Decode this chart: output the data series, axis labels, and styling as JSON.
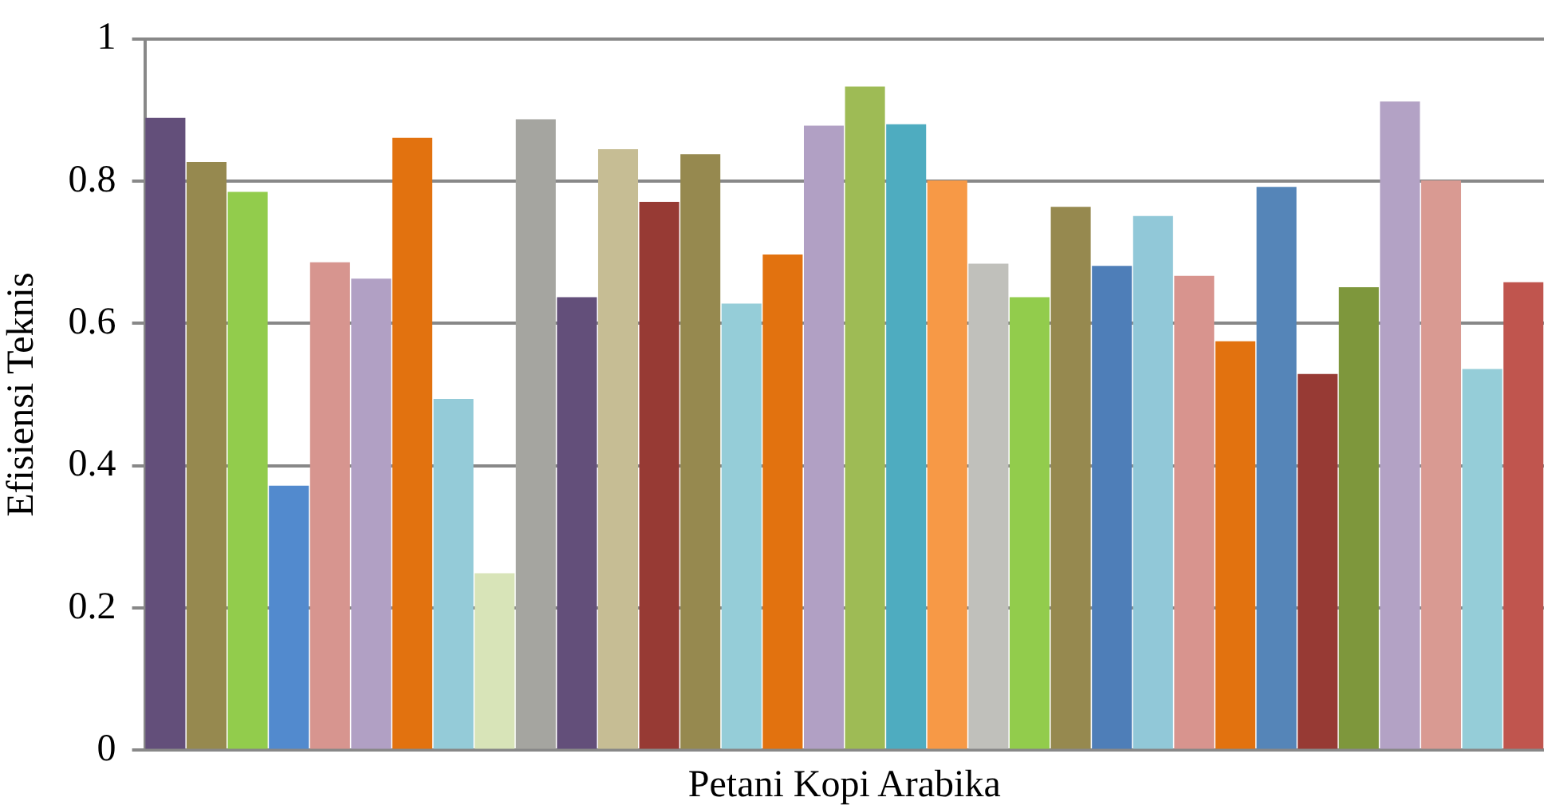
{
  "chart_data": {
    "type": "bar",
    "xlabel": "Petani Kopi Arabika",
    "ylabel": "Efisiensi Teknis",
    "categories": [
      null,
      null,
      null,
      null,
      null,
      null,
      null,
      null,
      null,
      null,
      null,
      null,
      null,
      null,
      null,
      null,
      null,
      null,
      null,
      null,
      null,
      null,
      null,
      null,
      null,
      null,
      null,
      null,
      null,
      null,
      null,
      null,
      null,
      null
    ],
    "values": [
      0.889,
      0.827,
      0.785,
      0.372,
      0.686,
      0.663,
      0.861,
      0.494,
      0.249,
      0.887,
      0.637,
      0.845,
      0.771,
      0.838,
      0.628,
      0.697,
      0.878,
      0.933,
      0.88,
      0.801,
      0.684,
      0.637,
      0.764,
      0.681,
      0.751,
      0.667,
      0.575,
      0.792,
      0.529,
      0.651,
      0.912,
      0.801,
      0.536,
      0.658
    ],
    "colors": [
      "#634f7a",
      "#96894f",
      "#92cc4c",
      "#528ace",
      "#d7958f",
      "#b1a0c4",
      "#e2720f",
      "#94cbd8",
      "#d8e4b8",
      "#a5a5a0",
      "#634f7a",
      "#c6bd94",
      "#973a34",
      "#96894f",
      "#95cdd8",
      "#e2720f",
      "#b1a0c4",
      "#9ebb55",
      "#4eacc0",
      "#f79946",
      "#c0c0bb",
      "#92cc4c",
      "#96894f",
      "#4e7eb8",
      "#91c8d8",
      "#d8948e",
      "#e2720f",
      "#5585b8",
      "#973a34",
      "#7e973c",
      "#b3a2c5",
      "#d99a92",
      "#95cdd8",
      "#c0554e"
    ],
    "ylim": [
      0,
      1
    ],
    "yticks": [
      0,
      0.2,
      0.4,
      0.6,
      0.8,
      1
    ],
    "grid": "y",
    "tick_labels": "y",
    "legend": false
  }
}
